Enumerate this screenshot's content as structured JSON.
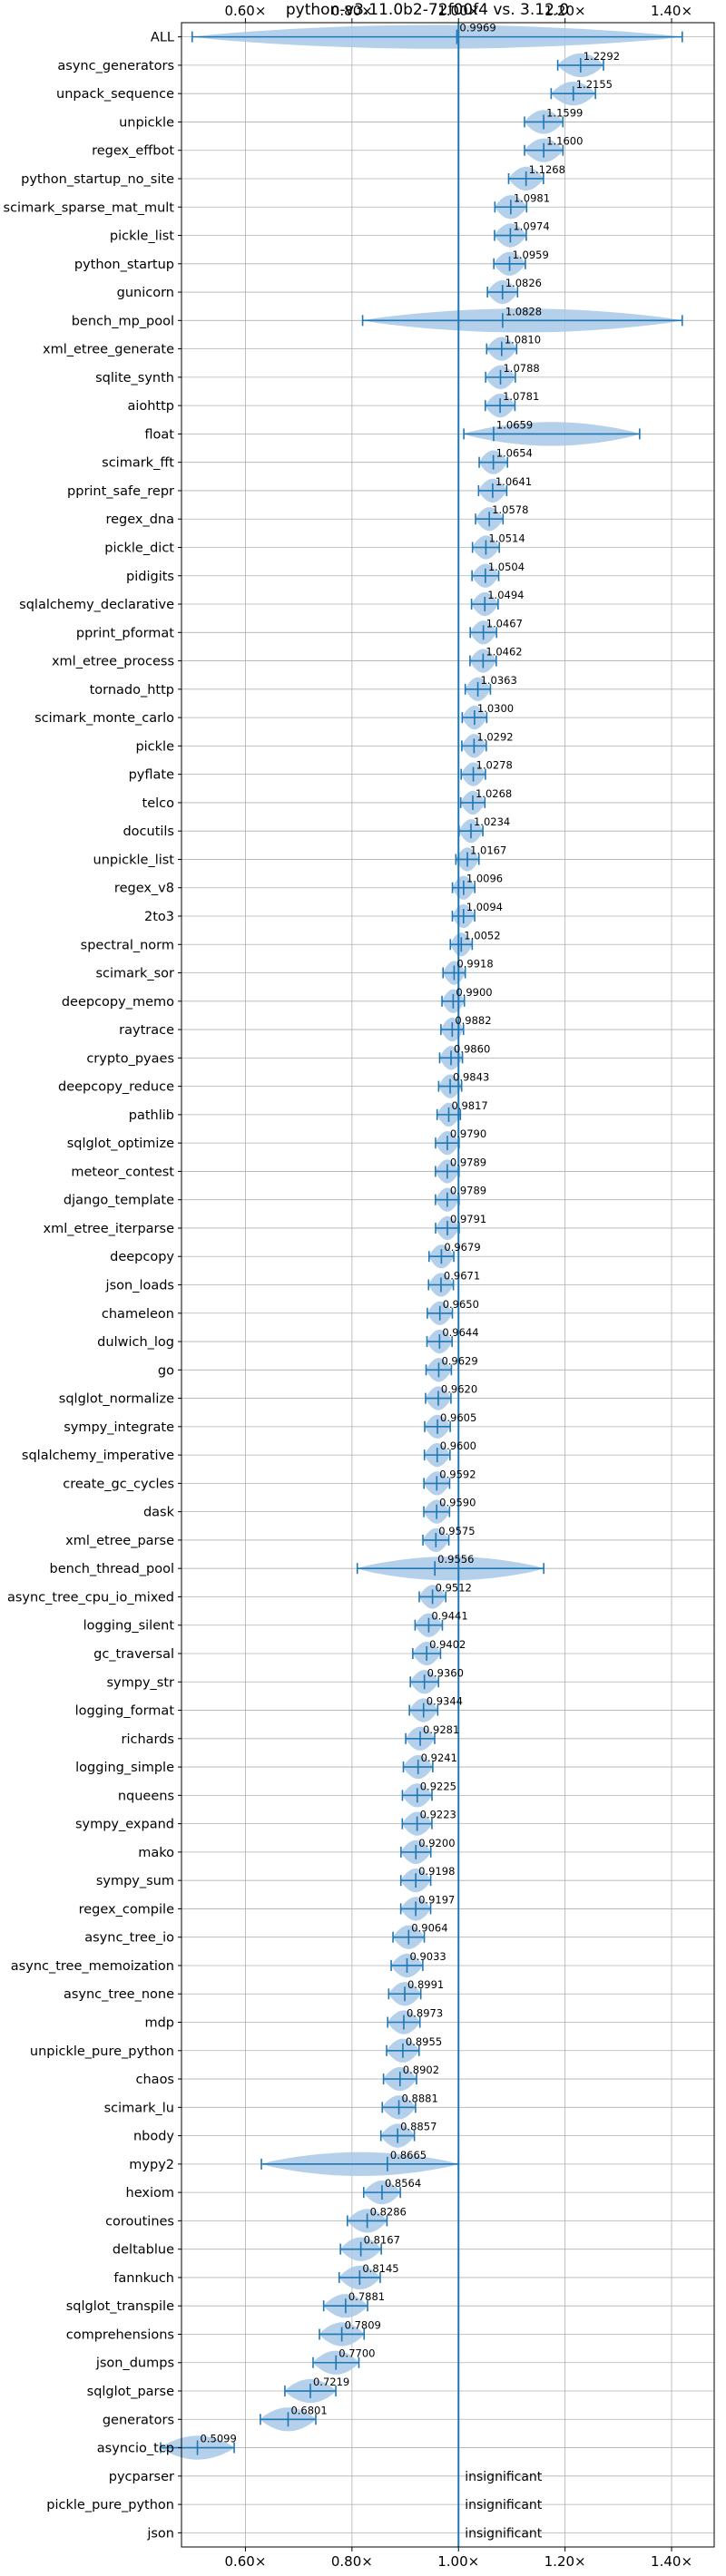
{
  "chart_data": {
    "type": "violin",
    "title": "python-v3.11.0b2-72f00f4 vs. 3.12.0",
    "xlabel": "",
    "ylabel": "",
    "xlim": [
      0.48,
      1.48
    ],
    "x_ticks": [
      0.6,
      0.8,
      1.0,
      1.2,
      1.4
    ],
    "x_tick_labels": [
      "0.60×",
      "0.80×",
      "1.00×",
      "1.20×",
      "1.40×"
    ],
    "grid": true,
    "reference_line": 1.0,
    "insignificant_label": "insignificant",
    "color": "#1f77b4",
    "fill_color": "#a7c8e6",
    "categories": [
      {
        "name": "ALL",
        "value": 0.9969,
        "label": "0.9969",
        "min": 0.5,
        "max": 1.42
      },
      {
        "name": "async_generators",
        "value": 1.2292,
        "label": "1.2292"
      },
      {
        "name": "unpack_sequence",
        "value": 1.2155,
        "label": "1.2155"
      },
      {
        "name": "unpickle",
        "value": 1.1599,
        "label": "1.1599"
      },
      {
        "name": "regex_effbot",
        "value": 1.16,
        "label": "1.1600"
      },
      {
        "name": "python_startup_no_site",
        "value": 1.1268,
        "label": "1.1268"
      },
      {
        "name": "scimark_sparse_mat_mult",
        "value": 1.0981,
        "label": "1.0981"
      },
      {
        "name": "pickle_list",
        "value": 1.0974,
        "label": "1.0974"
      },
      {
        "name": "python_startup",
        "value": 1.0959,
        "label": "1.0959"
      },
      {
        "name": "gunicorn",
        "value": 1.0826,
        "label": "1.0826"
      },
      {
        "name": "bench_mp_pool",
        "value": 1.0828,
        "label": "1.0828",
        "min": 0.82,
        "max": 1.42
      },
      {
        "name": "xml_etree_generate",
        "value": 1.081,
        "label": "1.0810"
      },
      {
        "name": "sqlite_synth",
        "value": 1.0788,
        "label": "1.0788"
      },
      {
        "name": "aiohttp",
        "value": 1.0781,
        "label": "1.0781"
      },
      {
        "name": "float",
        "value": 1.0659,
        "label": "1.0659",
        "min": 1.01,
        "max": 1.34
      },
      {
        "name": "scimark_fft",
        "value": 1.0654,
        "label": "1.0654"
      },
      {
        "name": "pprint_safe_repr",
        "value": 1.0641,
        "label": "1.0641"
      },
      {
        "name": "regex_dna",
        "value": 1.0578,
        "label": "1.0578"
      },
      {
        "name": "pickle_dict",
        "value": 1.0514,
        "label": "1.0514"
      },
      {
        "name": "pidigits",
        "value": 1.0504,
        "label": "1.0504"
      },
      {
        "name": "sqlalchemy_declarative",
        "value": 1.0494,
        "label": "1.0494"
      },
      {
        "name": "pprint_pformat",
        "value": 1.0467,
        "label": "1.0467"
      },
      {
        "name": "xml_etree_process",
        "value": 1.0462,
        "label": "1.0462"
      },
      {
        "name": "tornado_http",
        "value": 1.0363,
        "label": "1.0363"
      },
      {
        "name": "scimark_monte_carlo",
        "value": 1.03,
        "label": "1.0300"
      },
      {
        "name": "pickle",
        "value": 1.0292,
        "label": "1.0292"
      },
      {
        "name": "pyflate",
        "value": 1.0278,
        "label": "1.0278"
      },
      {
        "name": "telco",
        "value": 1.0268,
        "label": "1.0268"
      },
      {
        "name": "docutils",
        "value": 1.0234,
        "label": "1.0234"
      },
      {
        "name": "unpickle_list",
        "value": 1.0167,
        "label": "1.0167"
      },
      {
        "name": "regex_v8",
        "value": 1.0096,
        "label": "1.0096"
      },
      {
        "name": "2to3",
        "value": 1.0094,
        "label": "1.0094"
      },
      {
        "name": "spectral_norm",
        "value": 1.0052,
        "label": "1.0052"
      },
      {
        "name": "scimark_sor",
        "value": 0.9918,
        "label": "0.9918"
      },
      {
        "name": "deepcopy_memo",
        "value": 0.99,
        "label": "0.9900"
      },
      {
        "name": "raytrace",
        "value": 0.9882,
        "label": "0.9882"
      },
      {
        "name": "crypto_pyaes",
        "value": 0.986,
        "label": "0.9860"
      },
      {
        "name": "deepcopy_reduce",
        "value": 0.9843,
        "label": "0.9843"
      },
      {
        "name": "pathlib",
        "value": 0.9817,
        "label": "0.9817"
      },
      {
        "name": "sqlglot_optimize",
        "value": 0.979,
        "label": "0.9790"
      },
      {
        "name": "meteor_contest",
        "value": 0.9789,
        "label": "0.9789"
      },
      {
        "name": "django_template",
        "value": 0.9789,
        "label": "0.9789"
      },
      {
        "name": "xml_etree_iterparse",
        "value": 0.9791,
        "label": "0.9791"
      },
      {
        "name": "deepcopy",
        "value": 0.9679,
        "label": "0.9679"
      },
      {
        "name": "json_loads",
        "value": 0.9671,
        "label": "0.9671"
      },
      {
        "name": "chameleon",
        "value": 0.965,
        "label": "0.9650"
      },
      {
        "name": "dulwich_log",
        "value": 0.9644,
        "label": "0.9644"
      },
      {
        "name": "go",
        "value": 0.9629,
        "label": "0.9629"
      },
      {
        "name": "sqlglot_normalize",
        "value": 0.962,
        "label": "0.9620"
      },
      {
        "name": "sympy_integrate",
        "value": 0.9605,
        "label": "0.9605"
      },
      {
        "name": "sqlalchemy_imperative",
        "value": 0.96,
        "label": "0.9600"
      },
      {
        "name": "create_gc_cycles",
        "value": 0.9592,
        "label": "0.9592"
      },
      {
        "name": "dask",
        "value": 0.959,
        "label": "0.9590"
      },
      {
        "name": "xml_etree_parse",
        "value": 0.9575,
        "label": "0.9575"
      },
      {
        "name": "bench_thread_pool",
        "value": 0.9556,
        "label": "0.9556",
        "min": 0.81,
        "max": 1.16
      },
      {
        "name": "async_tree_cpu_io_mixed",
        "value": 0.9512,
        "label": "0.9512"
      },
      {
        "name": "logging_silent",
        "value": 0.9441,
        "label": "0.9441"
      },
      {
        "name": "gc_traversal",
        "value": 0.9402,
        "label": "0.9402"
      },
      {
        "name": "sympy_str",
        "value": 0.936,
        "label": "0.9360"
      },
      {
        "name": "logging_format",
        "value": 0.9344,
        "label": "0.9344"
      },
      {
        "name": "richards",
        "value": 0.9281,
        "label": "0.9281"
      },
      {
        "name": "logging_simple",
        "value": 0.9241,
        "label": "0.9241"
      },
      {
        "name": "nqueens",
        "value": 0.9225,
        "label": "0.9225"
      },
      {
        "name": "sympy_expand",
        "value": 0.9223,
        "label": "0.9223"
      },
      {
        "name": "mako",
        "value": 0.92,
        "label": "0.9200"
      },
      {
        "name": "sympy_sum",
        "value": 0.9198,
        "label": "0.9198"
      },
      {
        "name": "regex_compile",
        "value": 0.9197,
        "label": "0.9197"
      },
      {
        "name": "async_tree_io",
        "value": 0.9064,
        "label": "0.9064"
      },
      {
        "name": "async_tree_memoization",
        "value": 0.9033,
        "label": "0.9033"
      },
      {
        "name": "async_tree_none",
        "value": 0.8991,
        "label": "0.8991"
      },
      {
        "name": "mdp",
        "value": 0.8973,
        "label": "0.8973"
      },
      {
        "name": "unpickle_pure_python",
        "value": 0.8955,
        "label": "0.8955"
      },
      {
        "name": "chaos",
        "value": 0.8902,
        "label": "0.8902"
      },
      {
        "name": "scimark_lu",
        "value": 0.8881,
        "label": "0.8881"
      },
      {
        "name": "nbody",
        "value": 0.8857,
        "label": "0.8857"
      },
      {
        "name": "mypy2",
        "value": 0.8665,
        "label": "0.8665",
        "min": 0.63,
        "max": 1.0
      },
      {
        "name": "hexiom",
        "value": 0.8564,
        "label": "0.8564"
      },
      {
        "name": "coroutines",
        "value": 0.8286,
        "label": "0.8286"
      },
      {
        "name": "deltablue",
        "value": 0.8167,
        "label": "0.8167"
      },
      {
        "name": "fannkuch",
        "value": 0.8145,
        "label": "0.8145"
      },
      {
        "name": "sqlglot_transpile",
        "value": 0.7881,
        "label": "0.7881"
      },
      {
        "name": "comprehensions",
        "value": 0.7809,
        "label": "0.7809"
      },
      {
        "name": "json_dumps",
        "value": 0.77,
        "label": "0.7700"
      },
      {
        "name": "sqlglot_parse",
        "value": 0.7219,
        "label": "0.7219"
      },
      {
        "name": "generators",
        "value": 0.6801,
        "label": "0.6801"
      },
      {
        "name": "asyncio_tcp",
        "value": 0.5099,
        "label": "0.5099"
      },
      {
        "name": "pycparser",
        "value": null,
        "label": "insignificant",
        "insignificant": true
      },
      {
        "name": "pickle_pure_python",
        "value": null,
        "label": "insignificant",
        "insignificant": true
      },
      {
        "name": "json",
        "value": null,
        "label": "insignificant",
        "insignificant": true
      }
    ]
  }
}
